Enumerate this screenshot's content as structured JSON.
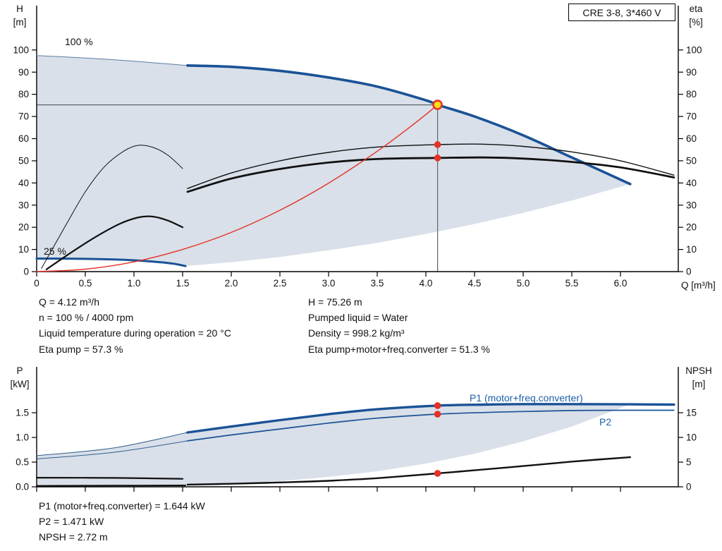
{
  "model_box": "CRE 3-8, 3*460 V",
  "axes_labels": {
    "top_left_1": "H",
    "top_left_2": "[m]",
    "top_right_1": "eta",
    "top_right_2": "[%]",
    "x_title": "Q [m³/h]",
    "bottom_left_1": "P",
    "bottom_left_2": "[kW]",
    "bottom_right_1": "NPSH",
    "bottom_right_2": "[m]"
  },
  "annotations": {
    "speed_100": "100 %",
    "speed_25": "25 %",
    "p1_label": "P1 (motor+freq.converter)",
    "p2_label": "P2"
  },
  "readouts": {
    "top_left": [
      "Q = 4.12 m³/h",
      "n = 100 % / 4000 rpm",
      "Liquid temperature during operation = 20 °C",
      "Eta pump = 57.3 %"
    ],
    "top_right": [
      "H = 75.26 m",
      "Pumped liquid = Water",
      "Density = 998.2 kg/m³",
      "Eta pump+motor+freq.converter = 51.3 %"
    ],
    "bottom": [
      "P1 (motor+freq.converter) = 1.644 kW",
      "P2 = 1.471 kW",
      "NPSH = 2.72 m"
    ]
  },
  "colors": {
    "pump_blue": "#1a5296",
    "red": "#e63127",
    "yellow": "#ffe014",
    "envelope": "rgba(45,85,135,0.18)",
    "guide": "#5f656c",
    "label_blue": "#1d5fa8"
  },
  "chart_data": [
    {
      "id": "hq",
      "type": "line",
      "title": "CRE 3-8, 3*460 V",
      "xlabel": "Q [m³/h]",
      "ylabel_left": "H [m]",
      "ylabel_right": "eta [%]",
      "xlim": [
        0,
        6.594
      ],
      "ylim_left": [
        0,
        120
      ],
      "ylim_right": [
        0,
        120
      ],
      "xticks": {
        "values": [
          0,
          0.5,
          1.0,
          1.5,
          2.0,
          2.5,
          3.0,
          3.5,
          4.0,
          4.5,
          5.0,
          5.5,
          6.0
        ],
        "labels": [
          "0",
          "0.5",
          "1.0",
          "1.5",
          "2.0",
          "2.5",
          "3.0",
          "3.5",
          "4.0",
          "4.5",
          "5.0",
          "5.5",
          "6.0"
        ]
      },
      "yticks_left": {
        "values": [
          0,
          10,
          20,
          30,
          40,
          50,
          60,
          70,
          80,
          90,
          100
        ],
        "labels": [
          "0",
          "10",
          "20",
          "30",
          "40",
          "50",
          "60",
          "70",
          "80",
          "90",
          "100"
        ]
      },
      "yticks_right": {
        "values": [
          0,
          10,
          20,
          30,
          40,
          50,
          60,
          70,
          80,
          90,
          100
        ],
        "labels": [
          "0",
          "10",
          "20",
          "30",
          "40",
          "50",
          "60",
          "70",
          "80",
          "90",
          "100"
        ]
      },
      "operating_point": {
        "q": 4.12,
        "h": 75.26,
        "eta_pump": 57.3,
        "eta_total": 51.3,
        "speed": "100 % / 4000 rpm"
      },
      "areas": [
        {
          "name": "operating-envelope",
          "color": "rgba(45,85,135,0.18)",
          "points": [
            [
              0,
              5.9
            ],
            [
              0.5,
              5.75
            ],
            [
              0.9,
              5.3
            ],
            [
              1.2,
              4.5
            ],
            [
              1.4,
              3.6
            ],
            [
              1.53,
              2.5
            ],
            [
              2.0,
              4.25
            ],
            [
              2.5,
              6.6
            ],
            [
              3.0,
              9.6
            ],
            [
              3.5,
              13.0
            ],
            [
              4.0,
              17.0
            ],
            [
              4.5,
              21.5
            ],
            [
              5.0,
              26.5
            ],
            [
              5.5,
              32.1
            ],
            [
              6.1,
              39.5
            ],
            [
              5.5,
              51.5
            ],
            [
              5.0,
              61.5
            ],
            [
              4.5,
              70.0
            ],
            [
              4.12,
              75.26
            ],
            [
              4.0,
              77.3
            ],
            [
              3.5,
              83.5
            ],
            [
              3.0,
              87.6
            ],
            [
              2.5,
              90.6
            ],
            [
              2.0,
              92.4
            ],
            [
              1.55,
              93
            ],
            [
              0.8,
              95.6
            ],
            [
              0,
              97.5
            ]
          ]
        }
      ],
      "guides": [
        {
          "name": "head-guide-line",
          "color": "#5f656c",
          "width": 1.2,
          "points": [
            [
              0,
              75.26
            ],
            [
              4.12,
              75.26
            ]
          ]
        },
        {
          "name": "flow-guide-line",
          "color": "#5f656c",
          "width": 1.2,
          "points": [
            [
              4.12,
              0
            ],
            [
              4.12,
              75.26
            ]
          ]
        }
      ],
      "series": [
        {
          "name": "envelope-upper-edge",
          "color": "#5b7ea6",
          "width": 1,
          "points": [
            [
              0,
              97.5
            ],
            [
              0.8,
              95.6
            ],
            [
              1.55,
              93
            ]
          ]
        },
        {
          "name": "pump-curve-100pct",
          "color": "#1a5296",
          "width": 3.6,
          "points": [
            [
              1.55,
              93
            ],
            [
              2.0,
              92.4
            ],
            [
              2.5,
              90.6
            ],
            [
              3.0,
              87.6
            ],
            [
              3.5,
              83.5
            ],
            [
              4.0,
              77.3
            ],
            [
              4.12,
              75.26
            ],
            [
              4.5,
              70.0
            ],
            [
              5.0,
              61.5
            ],
            [
              5.5,
              51.5
            ],
            [
              6.1,
              39.5
            ]
          ]
        },
        {
          "name": "pump-curve-25pct",
          "color": "#1a5296",
          "width": 3,
          "points": [
            [
              0,
              5.9
            ],
            [
              0.5,
              5.75
            ],
            [
              0.9,
              5.3
            ],
            [
              1.2,
              4.5
            ],
            [
              1.4,
              3.6
            ],
            [
              1.53,
              2.5
            ]
          ]
        },
        {
          "name": "eta-pump-curve",
          "color": "#111111",
          "width": 1.4,
          "points": [
            [
              1.55,
              37.5
            ],
            [
              2.0,
              44.5
            ],
            [
              2.5,
              50.0
            ],
            [
              3.0,
              53.8
            ],
            [
              3.5,
              56.2
            ],
            [
              4.12,
              57.3
            ],
            [
              4.6,
              57.5
            ],
            [
              5.0,
              56.5
            ],
            [
              5.5,
              54.0
            ],
            [
              6.0,
              50.0
            ],
            [
              6.55,
              43.5
            ]
          ]
        },
        {
          "name": "eta-total-curve",
          "color": "#111111",
          "width": 2.8,
          "points": [
            [
              1.55,
              36.0
            ],
            [
              2.0,
              42.0
            ],
            [
              2.5,
              46.3
            ],
            [
              3.0,
              49.2
            ],
            [
              3.5,
              50.8
            ],
            [
              4.12,
              51.3
            ],
            [
              4.6,
              51.5
            ],
            [
              5.0,
              51.0
            ],
            [
              5.5,
              49.5
            ],
            [
              6.0,
              47.0
            ],
            [
              6.55,
              42.5
            ]
          ]
        },
        {
          "name": "eta-pump-reduced-speed",
          "color": "#111111",
          "width": 1,
          "points": [
            [
              0.05,
              1.5
            ],
            [
              0.3,
              21.0
            ],
            [
              0.5,
              36.0
            ],
            [
              0.7,
              47.5
            ],
            [
              0.9,
              54.5
            ],
            [
              1.05,
              57.0
            ],
            [
              1.2,
              56.0
            ],
            [
              1.35,
              52.5
            ],
            [
              1.5,
              46.5
            ]
          ]
        },
        {
          "name": "eta-total-reduced-speed",
          "color": "#111111",
          "width": 2.2,
          "points": [
            [
              0.1,
              1.0
            ],
            [
              0.35,
              8.5
            ],
            [
              0.6,
              15.5
            ],
            [
              0.85,
              21.5
            ],
            [
              1.05,
              24.5
            ],
            [
              1.2,
              24.8
            ],
            [
              1.35,
              23.0
            ],
            [
              1.5,
              20.0
            ]
          ]
        },
        {
          "name": "system-curve",
          "color": "#e63127",
          "width": 1.4,
          "points": [
            [
              0,
              0
            ],
            [
              0.5,
              1.1
            ],
            [
              1.0,
              4.4
            ],
            [
              1.5,
              10.0
            ],
            [
              2.0,
              17.7
            ],
            [
              2.5,
              27.7
            ],
            [
              3.0,
              39.9
            ],
            [
              3.5,
              54.3
            ],
            [
              3.8,
              64.0
            ],
            [
              4.0,
              70.9
            ],
            [
              4.12,
              75.26
            ]
          ]
        }
      ],
      "markers": [
        {
          "name": "eta-pump-point",
          "x": 4.12,
          "y": 57.3,
          "r": 4.8,
          "fill": "#e63127"
        },
        {
          "name": "eta-total-point",
          "x": 4.12,
          "y": 51.3,
          "r": 4.8,
          "fill": "#e63127"
        },
        {
          "name": "duty-point",
          "x": 4.12,
          "y": 75.26,
          "r": 6,
          "fill": "#ffe014",
          "stroke": "#e63127",
          "sw": 2.6,
          "interactable": true
        }
      ]
    },
    {
      "id": "power",
      "type": "line",
      "xlabel": "Q [m³/h]",
      "ylabel_left": "P [kW]",
      "ylabel_right": "NPSH [m]",
      "xlim": [
        0,
        6.594
      ],
      "ylim_left": [
        0,
        2.429
      ],
      "ylim_right": [
        0,
        24.29
      ],
      "xticks": {
        "values": [
          0,
          0.5,
          1.0,
          1.5,
          2.0,
          2.5,
          3.0,
          3.5,
          4.0,
          4.5,
          5.0,
          5.5,
          6.0
        ],
        "labels": [
          "",
          "",
          "",
          "",
          "",
          "",
          "",
          "",
          "",
          "",
          "",
          "",
          ""
        ]
      },
      "yticks_left": {
        "values": [
          0,
          0.5,
          1.0,
          1.5
        ],
        "labels": [
          "0.0",
          "0.5",
          "1.0",
          "1.5"
        ]
      },
      "yticks_right": {
        "values": [
          0,
          5,
          10,
          15
        ],
        "labels": [
          "0",
          "5",
          "10",
          "15"
        ]
      },
      "operating_point": {
        "q": 4.12,
        "p1_kw": 1.644,
        "p2_kw": 1.471,
        "npsh_m": 2.72
      },
      "areas": [
        {
          "name": "power-envelope",
          "color": "rgba(45,85,135,0.18)",
          "points": [
            [
              0,
              0.63
            ],
            [
              0.8,
              0.79
            ],
            [
              1.55,
              1.1
            ],
            [
              2.0,
              1.22
            ],
            [
              2.5,
              1.35
            ],
            [
              3.0,
              1.47
            ],
            [
              3.5,
              1.57
            ],
            [
              4.12,
              1.644
            ],
            [
              4.6,
              1.665
            ],
            [
              5.0,
              1.675
            ],
            [
              5.5,
              1.675
            ],
            [
              6.1,
              1.67
            ],
            [
              5.5,
              1.22
            ],
            [
              5.0,
              0.92
            ],
            [
              4.5,
              0.67
            ],
            [
              4.0,
              0.47
            ],
            [
              3.5,
              0.315
            ],
            [
              3.0,
              0.2
            ],
            [
              2.5,
              0.115
            ],
            [
              2.0,
              0.059
            ],
            [
              1.53,
              0.026
            ],
            [
              0,
              0.012
            ]
          ]
        }
      ],
      "guides": [],
      "series": [
        {
          "name": "p1-extension",
          "color": "#33608f",
          "width": 1,
          "points": [
            [
              0,
              0.63
            ],
            [
              0.8,
              0.79
            ],
            [
              1.55,
              1.1
            ]
          ]
        },
        {
          "name": "p2-extension",
          "color": "#33608f",
          "width": 1,
          "points": [
            [
              0,
              0.565
            ],
            [
              0.8,
              0.7
            ],
            [
              1.55,
              0.93
            ]
          ]
        },
        {
          "name": "p1-25pct-segment",
          "color": "#111111",
          "width": 2,
          "points": [
            [
              0,
              0.02
            ],
            [
              0.8,
              0.024
            ],
            [
              1.53,
              0.028
            ]
          ]
        },
        {
          "name": "p1-curve",
          "color": "#1a5296",
          "width": 3.4,
          "points": [
            [
              1.55,
              1.1
            ],
            [
              2.0,
              1.22
            ],
            [
              2.5,
              1.35
            ],
            [
              3.0,
              1.47
            ],
            [
              3.5,
              1.57
            ],
            [
              4.12,
              1.644
            ],
            [
              4.6,
              1.665
            ],
            [
              5.0,
              1.675
            ],
            [
              5.5,
              1.675
            ],
            [
              6.1,
              1.67
            ],
            [
              6.55,
              1.665
            ]
          ]
        },
        {
          "name": "p2-curve",
          "color": "#1a5296",
          "width": 1.7,
          "points": [
            [
              1.55,
              0.93
            ],
            [
              2.0,
              1.05
            ],
            [
              2.5,
              1.17
            ],
            [
              3.0,
              1.29
            ],
            [
              3.5,
              1.39
            ],
            [
              4.12,
              1.471
            ],
            [
              4.6,
              1.505
            ],
            [
              5.0,
              1.525
            ],
            [
              5.5,
              1.545
            ],
            [
              6.1,
              1.55
            ],
            [
              6.55,
              1.55
            ]
          ]
        },
        {
          "name": "npsh-low-flow-segment",
          "color": "#111111",
          "width": 2.2,
          "axis": "right",
          "points": [
            [
              0,
              1.85
            ],
            [
              0.8,
              1.8
            ],
            [
              1.5,
              1.62
            ]
          ]
        },
        {
          "name": "npsh-curve",
          "color": "#111111",
          "width": 2.4,
          "axis": "right",
          "points": [
            [
              1.55,
              0.45
            ],
            [
              2.0,
              0.62
            ],
            [
              2.5,
              0.88
            ],
            [
              3.0,
              1.22
            ],
            [
              3.5,
              1.75
            ],
            [
              4.12,
              2.72
            ],
            [
              4.5,
              3.35
            ],
            [
              5.0,
              4.2
            ],
            [
              5.5,
              5.1
            ],
            [
              6.1,
              6.0
            ]
          ]
        }
      ],
      "markers": [
        {
          "name": "p1-point",
          "x": 4.12,
          "y": 1.644,
          "r": 4.8,
          "fill": "#e63127"
        },
        {
          "name": "p2-point",
          "x": 4.12,
          "y": 1.471,
          "r": 4.8,
          "fill": "#e63127"
        },
        {
          "name": "npsh-point",
          "x": 4.12,
          "y": 2.72,
          "axis": "right",
          "r": 4.8,
          "fill": "#e63127"
        }
      ]
    }
  ]
}
